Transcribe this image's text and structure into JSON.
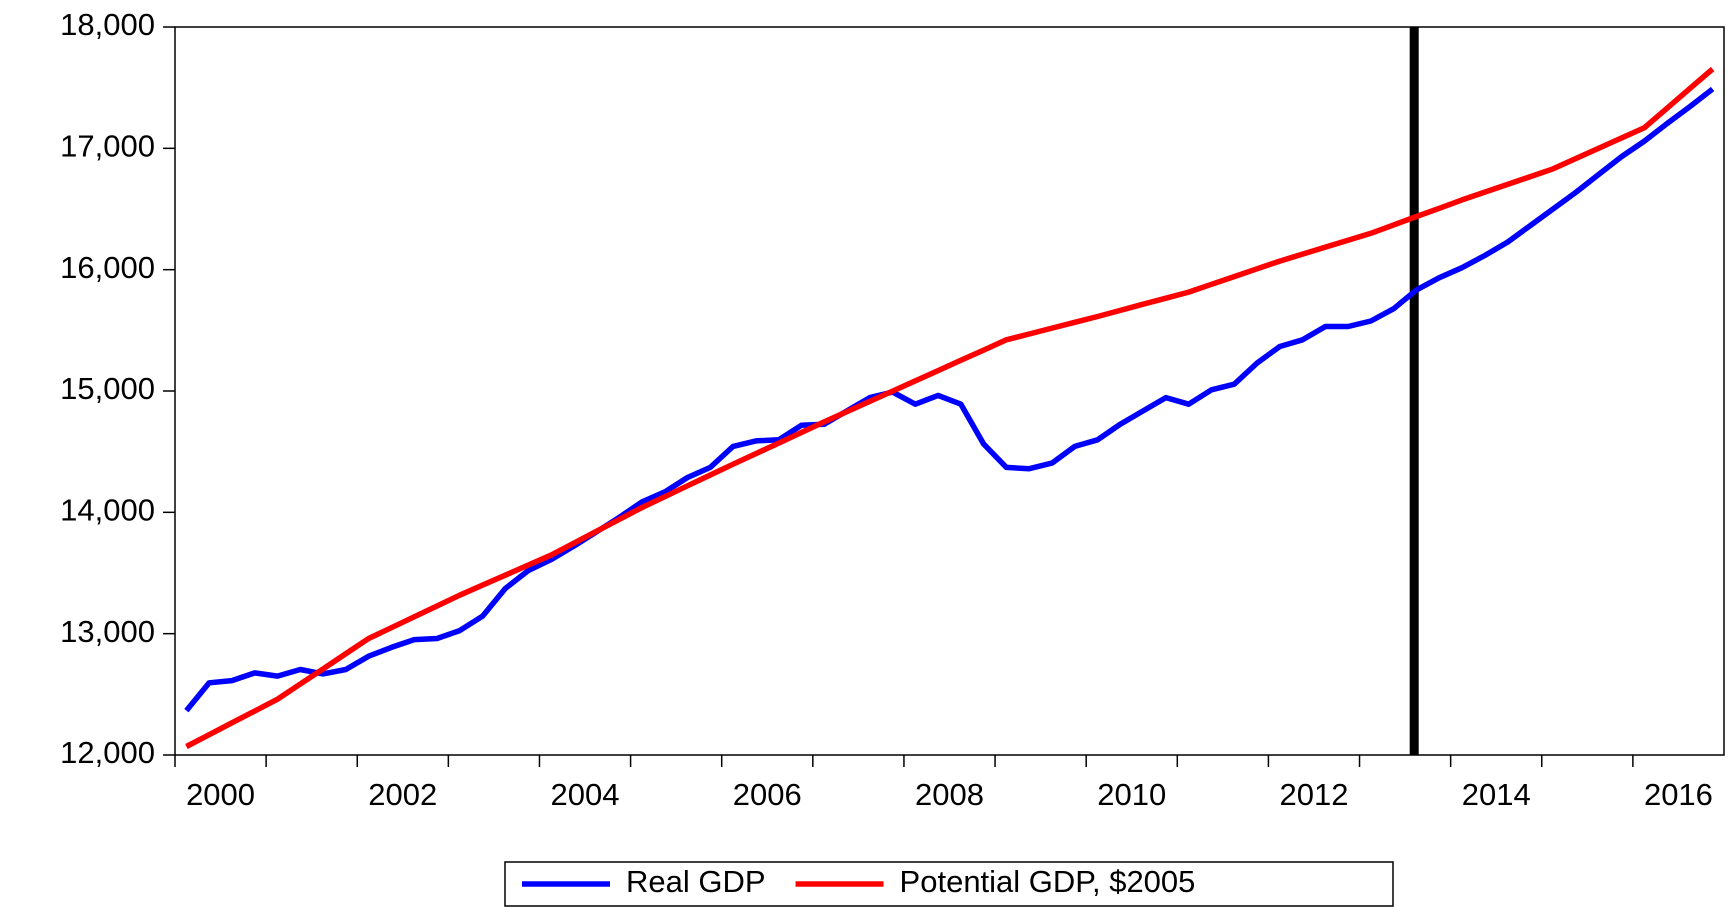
{
  "chart_data": {
    "type": "line",
    "x": [
      2000.125,
      2000.375,
      2000.625,
      2000.875,
      2001.125,
      2001.375,
      2001.625,
      2001.875,
      2002.125,
      2002.375,
      2002.625,
      2002.875,
      2003.125,
      2003.375,
      2003.625,
      2003.875,
      2004.125,
      2004.375,
      2004.625,
      2004.875,
      2005.125,
      2005.375,
      2005.625,
      2005.875,
      2006.125,
      2006.375,
      2006.625,
      2006.875,
      2007.125,
      2007.375,
      2007.625,
      2007.875,
      2008.125,
      2008.375,
      2008.625,
      2008.875,
      2009.125,
      2009.375,
      2009.625,
      2009.875,
      2010.125,
      2010.375,
      2010.625,
      2010.875,
      2011.125,
      2011.375,
      2011.625,
      2011.875,
      2012.125,
      2012.375,
      2012.625,
      2012.875,
      2013.125,
      2013.375,
      2013.625,
      2013.875,
      2014.125,
      2014.375,
      2014.625,
      2014.875,
      2015.125,
      2015.375,
      2015.625,
      2015.875,
      2016.125,
      2016.375,
      2016.625,
      2016.875
    ],
    "series": [
      {
        "name": "Real GDP",
        "color": "#0000ff",
        "values": [
          12366,
          12595,
          12613,
          12677,
          12650,
          12705,
          12668,
          12705,
          12814,
          12887,
          12951,
          12960,
          13025,
          13144,
          13372,
          13519,
          13610,
          13720,
          13839,
          13958,
          14086,
          14168,
          14287,
          14370,
          14543,
          14589,
          14598,
          14717,
          14726,
          14836,
          14946,
          14991,
          14891,
          14964,
          14891,
          14562,
          14370,
          14360,
          14406,
          14543,
          14598,
          14726,
          14836,
          14946,
          14891,
          15010,
          15056,
          15230,
          15367,
          15422,
          15532,
          15532,
          15577,
          15678,
          15833,
          15934,
          16016,
          16117,
          16227,
          16364,
          16501,
          16638,
          16785,
          16931,
          17059,
          17205,
          17343,
          17489
        ]
      },
      {
        "name": "Potential GDP, $2005",
        "color": "#ff0000",
        "values": [
          12070,
          12167,
          12265,
          12362,
          12460,
          12585,
          12710,
          12835,
          12960,
          13049,
          13139,
          13228,
          13317,
          13400,
          13482,
          13565,
          13647,
          13745,
          13844,
          13942,
          14040,
          14129,
          14219,
          14308,
          14397,
          14484,
          14571,
          14658,
          14745,
          14830,
          14914,
          14999,
          15083,
          15168,
          15253,
          15337,
          15422,
          15470,
          15518,
          15566,
          15614,
          15664,
          15715,
          15765,
          15815,
          15879,
          15943,
          16007,
          16071,
          16128,
          16186,
          16243,
          16300,
          16369,
          16438,
          16506,
          16575,
          16639,
          16703,
          16767,
          16831,
          16916,
          17000,
          17085,
          17169,
          17331,
          17492,
          17654
        ]
      }
    ],
    "xlim": [
      2000,
      2017
    ],
    "xticks": [
      2000,
      2002,
      2004,
      2006,
      2008,
      2010,
      2012,
      2014,
      2016
    ],
    "ylim": [
      12000,
      18000
    ],
    "yticks": [
      {
        "value": 12000,
        "label": "12,000"
      },
      {
        "value": 13000,
        "label": "13,000"
      },
      {
        "value": 14000,
        "label": "14,000"
      },
      {
        "value": 15000,
        "label": "15,000"
      },
      {
        "value": 16000,
        "label": "16,000"
      },
      {
        "value": 17000,
        "label": "17,000"
      },
      {
        "value": 18000,
        "label": "18,000"
      }
    ],
    "vlines": [
      2013.6
    ],
    "legend": "bottom"
  }
}
